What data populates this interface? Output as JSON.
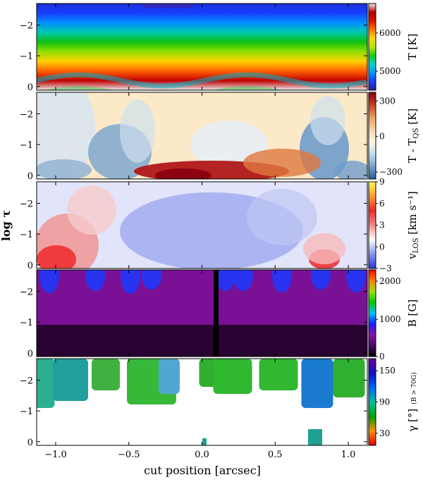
{
  "chart_data": {
    "type": "heatmap",
    "xlabel": "cut position [arcsec]",
    "ylabel_html": "log τ",
    "xlim": [
      -1.13,
      1.13
    ],
    "ylim": [
      0.12,
      -2.7
    ],
    "x_ticks": [
      "−1.0",
      "−0.5",
      "0.0",
      "0.5",
      "1.0"
    ],
    "x_tick_values": [
      -1.0,
      -0.5,
      0.0,
      0.5,
      1.0
    ],
    "y_ticks": [
      "0",
      "−1",
      "−2"
    ],
    "y_tick_values": [
      0,
      -1,
      -2
    ],
    "panels": [
      {
        "id": "temperature",
        "colorbar_label": "T [K]",
        "colormap": "rainbow",
        "colorbar_ticks": [
          "5000",
          "6000"
        ],
        "colorbar_tick_fractions": [
          0.22,
          0.66
        ],
        "description_values": {
          "min": 4500,
          "max": 6800
        }
      },
      {
        "id": "temperature-difference",
        "colorbar_label": "T - T",
        "colorbar_label_sub": "QS",
        "colorbar_label_unit": " [K]",
        "colormap": "diverging-blue-red",
        "colorbar_ticks": [
          "−300",
          "0",
          "300"
        ],
        "colorbar_tick_fractions": [
          0.08,
          0.49,
          0.9
        ]
      },
      {
        "id": "velocity",
        "colorbar_label": "v",
        "colorbar_label_sub": "LOS",
        "colorbar_label_unit": " [km s⁻¹]",
        "colormap": "blue-white-red-yellow",
        "colorbar_ticks": [
          "−3",
          "0",
          "3",
          "6",
          "9"
        ],
        "colorbar_tick_fractions": [
          0.0,
          0.25,
          0.5,
          0.75,
          1.0
        ]
      },
      {
        "id": "magnetic-field",
        "colorbar_label": "B [G]",
        "colormap": "black-purple-blue-green-red",
        "colorbar_ticks": [
          "0",
          "1000",
          "2000"
        ],
        "colorbar_tick_fractions": [
          0.0,
          0.43,
          0.87
        ]
      },
      {
        "id": "inclination",
        "colorbar_label": "γ [°]",
        "colorbar_label_note": "(B > 70G)",
        "colormap": "red-green-blue-purple",
        "colorbar_ticks": [
          "30",
          "90",
          "150"
        ],
        "colorbar_tick_fractions": [
          0.14,
          0.5,
          0.86
        ]
      }
    ]
  },
  "colors": {
    "axis": "#000000",
    "background": "#ffffff"
  }
}
